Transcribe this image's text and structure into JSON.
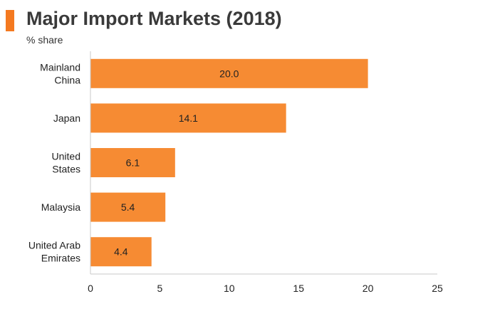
{
  "title": "Major Import Markets (2018)",
  "subtitle": "% share",
  "colors": {
    "bar": "#f68b33",
    "accent": "#f47920",
    "axis": "#c8c8c8"
  },
  "chart_data": {
    "type": "bar",
    "orientation": "horizontal",
    "title": "Major Import Markets (2018)",
    "subtitle": "% share",
    "categories": [
      [
        "Mainland",
        "China"
      ],
      [
        "Japan"
      ],
      [
        "United",
        "States"
      ],
      [
        "Malaysia"
      ],
      [
        "United Arab",
        "Emirates"
      ]
    ],
    "values": [
      20.0,
      14.1,
      6.1,
      5.4,
      4.4
    ],
    "value_labels": [
      "20.0",
      "14.1",
      "6.1",
      "5.4",
      "4.4"
    ],
    "xlim": [
      0,
      25
    ],
    "xticks": [
      0,
      5,
      10,
      15,
      20,
      25
    ],
    "grid": false,
    "legend": "none"
  }
}
